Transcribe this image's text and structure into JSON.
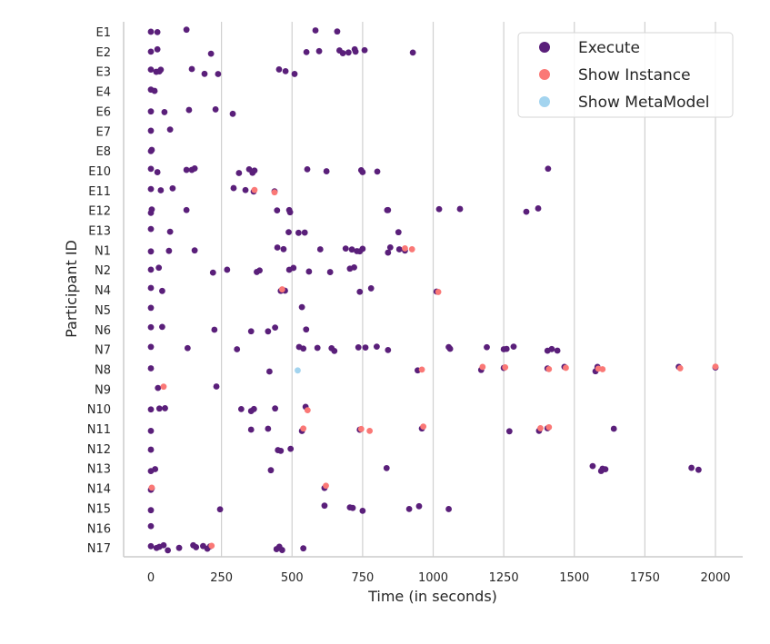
{
  "chart_data": {
    "type": "scatter",
    "title": "",
    "xlabel": "Time (in seconds)",
    "ylabel": "Participant ID",
    "xlim": [
      -95,
      2100
    ],
    "xticks": [
      0,
      250,
      500,
      750,
      1000,
      1250,
      1500,
      1750,
      2000
    ],
    "grid": "vertical",
    "legend_position": "top-right",
    "colors": {
      "Execute": "#5a1f7a",
      "Show Instance": "#fa7876",
      "Show MetaModel": "#a3d4ef"
    },
    "legend": [
      "Execute",
      "Show Instance",
      "Show MetaModel"
    ],
    "categories": [
      "E1",
      "E2",
      "E3",
      "E4",
      "E6",
      "E7",
      "E8",
      "E10",
      "E11",
      "E12",
      "E13",
      "N1",
      "N2",
      "N4",
      "N5",
      "N6",
      "N7",
      "N8",
      "N9",
      "N10",
      "N11",
      "N12",
      "N13",
      "N14",
      "N15",
      "N16",
      "N17"
    ],
    "series": [
      {
        "name": "Execute",
        "points": {
          "E1": [
            0,
            23,
            126,
            583,
            660
          ],
          "E2": [
            0,
            23,
            213,
            551,
            596,
            668,
            680,
            700,
            722,
            725,
            757,
            928
          ],
          "E3": [
            0,
            19,
            30,
            35,
            145,
            190,
            238,
            454,
            477,
            509
          ],
          "E4": [
            0,
            13
          ],
          "E6": [
            0,
            48,
            135,
            229,
            290
          ],
          "E7": [
            0,
            68
          ],
          "E8": [
            0,
            3
          ],
          "E10": [
            0,
            23,
            126,
            145,
            155,
            312,
            348,
            360,
            367,
            554,
            622,
            745,
            750,
            802,
            1407
          ],
          "E11": [
            0,
            35,
            77,
            293,
            335,
            364,
            438
          ],
          "E12": [
            0,
            3,
            126,
            447,
            490,
            493,
            837,
            840,
            1021,
            1095,
            1330,
            1372
          ],
          "E13": [
            0,
            68,
            488,
            523,
            545,
            877
          ],
          "N1": [
            0,
            64,
            155,
            448,
            470,
            600,
            690,
            712,
            730,
            740,
            750,
            840,
            848,
            880,
            900
          ],
          "N2": [
            0,
            28,
            220,
            270,
            375,
            385,
            490,
            505,
            560,
            635,
            705,
            720
          ],
          "N4": [
            0,
            40,
            460,
            475,
            740,
            780,
            1012
          ],
          "N5": [
            0,
            535
          ],
          "N6": [
            0,
            40,
            225,
            355,
            415,
            440,
            550
          ],
          "N7": [
            0,
            130,
            305,
            525,
            540,
            590,
            640,
            650,
            735,
            760,
            800,
            840,
            1055,
            1060,
            1190,
            1250,
            1260,
            1285,
            1405,
            1420,
            1440
          ],
          "N8": [
            0,
            420,
            945,
            1170,
            1250,
            1405,
            1465,
            1575,
            1582,
            1870,
            2000
          ],
          "N9": [
            25,
            232
          ],
          "N10": [
            0,
            30,
            50,
            320,
            355,
            365,
            440,
            548
          ],
          "N11": [
            0,
            355,
            415,
            535,
            740,
            960,
            1270,
            1375,
            1405,
            1640
          ],
          "N12": [
            0,
            450,
            460,
            495
          ],
          "N13": [
            0,
            15,
            425,
            835,
            1565,
            1595,
            1600,
            1610,
            1915,
            1940
          ],
          "N14": [
            0,
            3,
            615
          ],
          "N15": [
            0,
            245,
            615,
            705,
            715,
            750,
            915,
            950,
            1055
          ],
          "N16": [
            0
          ],
          "N17": [
            0,
            20,
            30,
            45,
            60,
            100,
            150,
            160,
            185,
            200,
            210,
            445,
            455,
            465,
            540
          ]
        }
      },
      {
        "name": "Show Instance",
        "points": {
          "E11": [
            367,
            438
          ],
          "N1": [
            900,
            925
          ],
          "N4": [
            465,
            1018
          ],
          "N8": [
            960,
            1175,
            1255,
            1410,
            1470,
            1585,
            1600,
            1875,
            2000
          ],
          "N9": [
            45
          ],
          "N10": [
            555
          ],
          "N11": [
            540,
            745,
            775,
            965,
            1380,
            1410
          ],
          "N14": [
            3,
            620
          ],
          "N17": [
            215
          ]
        }
      },
      {
        "name": "Show MetaModel",
        "points": {
          "N8": [
            520
          ]
        }
      }
    ]
  }
}
